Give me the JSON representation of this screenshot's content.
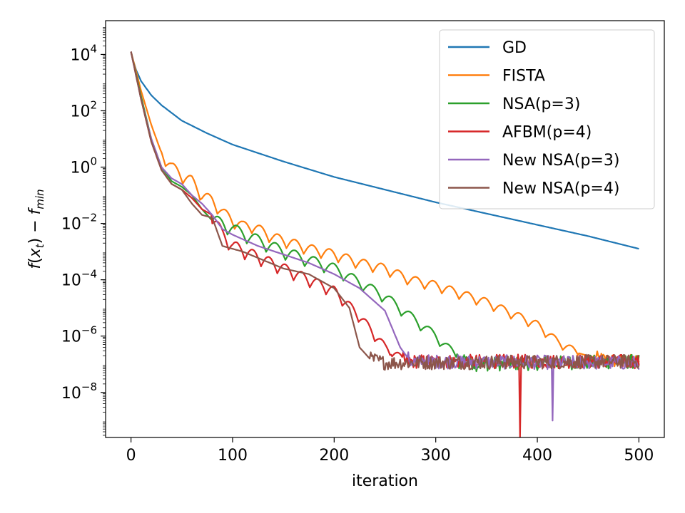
{
  "chart_data": {
    "type": "line",
    "xlabel": "iteration",
    "ylabel": "f(x_t) − f_min",
    "ylabel_parts": {
      "f": "f",
      "open": "(",
      "x": "x",
      "t": "t",
      "close": ")",
      "minus": " − ",
      "f2": "f",
      "min": "min"
    },
    "x_ticks": [
      0,
      100,
      200,
      300,
      400,
      500
    ],
    "y_ticks": [
      {
        "exp": 4,
        "base": "10",
        "sup": "4"
      },
      {
        "exp": 2,
        "base": "10",
        "sup": "2"
      },
      {
        "exp": 0,
        "base": "10",
        "sup": "0"
      },
      {
        "exp": -2,
        "base": "10",
        "sup": "−2"
      },
      {
        "exp": -4,
        "base": "10",
        "sup": "−4"
      },
      {
        "exp": -6,
        "base": "10",
        "sup": "−6"
      },
      {
        "exp": -8,
        "base": "10",
        "sup": "−8"
      }
    ],
    "xlim": [
      -25,
      525
    ],
    "ylim_log10": [
      -9.6,
      5.2
    ],
    "legend_position": "top-right",
    "series": [
      {
        "name": "GD",
        "color": "#1f77b4",
        "points": [
          [
            0,
            4.1
          ],
          [
            2,
            3.8
          ],
          [
            5,
            3.45
          ],
          [
            10,
            3.05
          ],
          [
            20,
            2.55
          ],
          [
            30,
            2.2
          ],
          [
            50,
            1.65
          ],
          [
            75,
            1.2
          ],
          [
            100,
            0.8
          ],
          [
            150,
            0.2
          ],
          [
            200,
            -0.35
          ],
          [
            250,
            -0.8
          ],
          [
            300,
            -1.25
          ],
          [
            350,
            -1.65
          ],
          [
            400,
            -2.05
          ],
          [
            450,
            -2.45
          ],
          [
            500,
            -2.9
          ]
        ]
      },
      {
        "name": "FISTA",
        "color": "#ff7f0e",
        "points": [
          [
            0,
            4.1
          ],
          [
            10,
            2.7
          ],
          [
            20,
            1.5
          ],
          [
            30,
            0.5
          ],
          [
            40,
            0.0
          ],
          [
            50,
            -0.3
          ],
          [
            60,
            -0.5
          ],
          [
            70,
            -1.0
          ],
          [
            80,
            -1.2
          ],
          [
            90,
            -1.6
          ],
          [
            100,
            -1.9
          ],
          [
            110,
            -2.1
          ],
          [
            120,
            -2.1
          ],
          [
            130,
            -2.3
          ],
          [
            140,
            -2.5
          ],
          [
            150,
            -2.6
          ],
          [
            175,
            -2.9
          ],
          [
            200,
            -3.1
          ],
          [
            225,
            -3.4
          ],
          [
            250,
            -3.6
          ],
          [
            275,
            -4.0
          ],
          [
            300,
            -4.2
          ],
          [
            325,
            -4.5
          ],
          [
            350,
            -4.8
          ],
          [
            375,
            -5.2
          ],
          [
            400,
            -5.6
          ],
          [
            420,
            -6.2
          ],
          [
            440,
            -6.6
          ],
          [
            460,
            -6.8
          ],
          [
            480,
            -6.9
          ],
          [
            500,
            -6.9
          ]
        ],
        "oscillation": {
          "period": 17,
          "amplitude": 0.45,
          "start": 30,
          "end": 440
        },
        "noise_floor": -6.9
      },
      {
        "name": "NSA(p=3)",
        "color": "#2ca02c",
        "points": [
          [
            0,
            4.1
          ],
          [
            10,
            2.5
          ],
          [
            20,
            1.0
          ],
          [
            30,
            0.0
          ],
          [
            40,
            -0.5
          ],
          [
            50,
            -0.7
          ],
          [
            60,
            -1.0
          ],
          [
            70,
            -1.5
          ],
          [
            80,
            -1.9
          ],
          [
            90,
            -2.0
          ],
          [
            100,
            -2.2
          ],
          [
            125,
            -2.6
          ],
          [
            150,
            -3.0
          ],
          [
            175,
            -3.3
          ],
          [
            200,
            -3.6
          ],
          [
            225,
            -4.1
          ],
          [
            250,
            -4.6
          ],
          [
            275,
            -5.3
          ],
          [
            300,
            -6.0
          ],
          [
            320,
            -6.7
          ],
          [
            340,
            -7.0
          ],
          [
            500,
            -6.9
          ]
        ],
        "oscillation": {
          "period": 19,
          "amplitude": 0.5,
          "start": 80,
          "end": 330
        },
        "noise_floor": -6.9
      },
      {
        "name": "AFBM(p=4)",
        "color": "#d62728",
        "points": [
          [
            0,
            4.1
          ],
          [
            10,
            2.4
          ],
          [
            20,
            0.9
          ],
          [
            30,
            -0.1
          ],
          [
            40,
            -0.6
          ],
          [
            50,
            -0.8
          ],
          [
            60,
            -1.1
          ],
          [
            70,
            -1.5
          ],
          [
            80,
            -1.7
          ],
          [
            90,
            -2.4
          ],
          [
            100,
            -2.8
          ],
          [
            125,
            -3.2
          ],
          [
            150,
            -3.6
          ],
          [
            175,
            -4.0
          ],
          [
            200,
            -4.4
          ],
          [
            225,
            -5.3
          ],
          [
            250,
            -6.4
          ],
          [
            270,
            -6.9
          ],
          [
            500,
            -6.9
          ]
        ],
        "oscillation": {
          "period": 16,
          "amplitude": 0.5,
          "start": 80,
          "end": 270
        },
        "noise_floor": -6.9,
        "spike": {
          "x": 383,
          "y": -9.6
        }
      },
      {
        "name": "New NSA(p=3)",
        "color": "#9467bd",
        "points": [
          [
            0,
            4.1
          ],
          [
            10,
            2.4
          ],
          [
            20,
            1.0
          ],
          [
            30,
            0.0
          ],
          [
            40,
            -0.4
          ],
          [
            50,
            -0.6
          ],
          [
            60,
            -1.0
          ],
          [
            70,
            -1.3
          ],
          [
            80,
            -1.7
          ],
          [
            90,
            -2.2
          ],
          [
            100,
            -2.4
          ],
          [
            125,
            -2.8
          ],
          [
            150,
            -3.1
          ],
          [
            175,
            -3.4
          ],
          [
            200,
            -3.8
          ],
          [
            225,
            -4.3
          ],
          [
            250,
            -5.1
          ],
          [
            265,
            -6.4
          ],
          [
            275,
            -6.9
          ],
          [
            500,
            -6.95
          ]
        ],
        "noise_floor": -6.95,
        "spike": {
          "x": 415,
          "y": -9.0
        }
      },
      {
        "name": "New NSA(p=4)",
        "color": "#8c564b",
        "points": [
          [
            0,
            4.1
          ],
          [
            10,
            2.4
          ],
          [
            20,
            0.9
          ],
          [
            30,
            -0.1
          ],
          [
            40,
            -0.6
          ],
          [
            50,
            -0.8
          ],
          [
            60,
            -1.3
          ],
          [
            70,
            -1.7
          ],
          [
            80,
            -1.8
          ],
          [
            90,
            -2.8
          ],
          [
            110,
            -3.0
          ],
          [
            130,
            -3.3
          ],
          [
            150,
            -3.6
          ],
          [
            175,
            -3.8
          ],
          [
            200,
            -4.3
          ],
          [
            215,
            -5.0
          ],
          [
            225,
            -6.4
          ],
          [
            235,
            -6.8
          ],
          [
            250,
            -6.95
          ],
          [
            500,
            -6.9
          ]
        ],
        "noise_floor": -6.95
      }
    ]
  }
}
